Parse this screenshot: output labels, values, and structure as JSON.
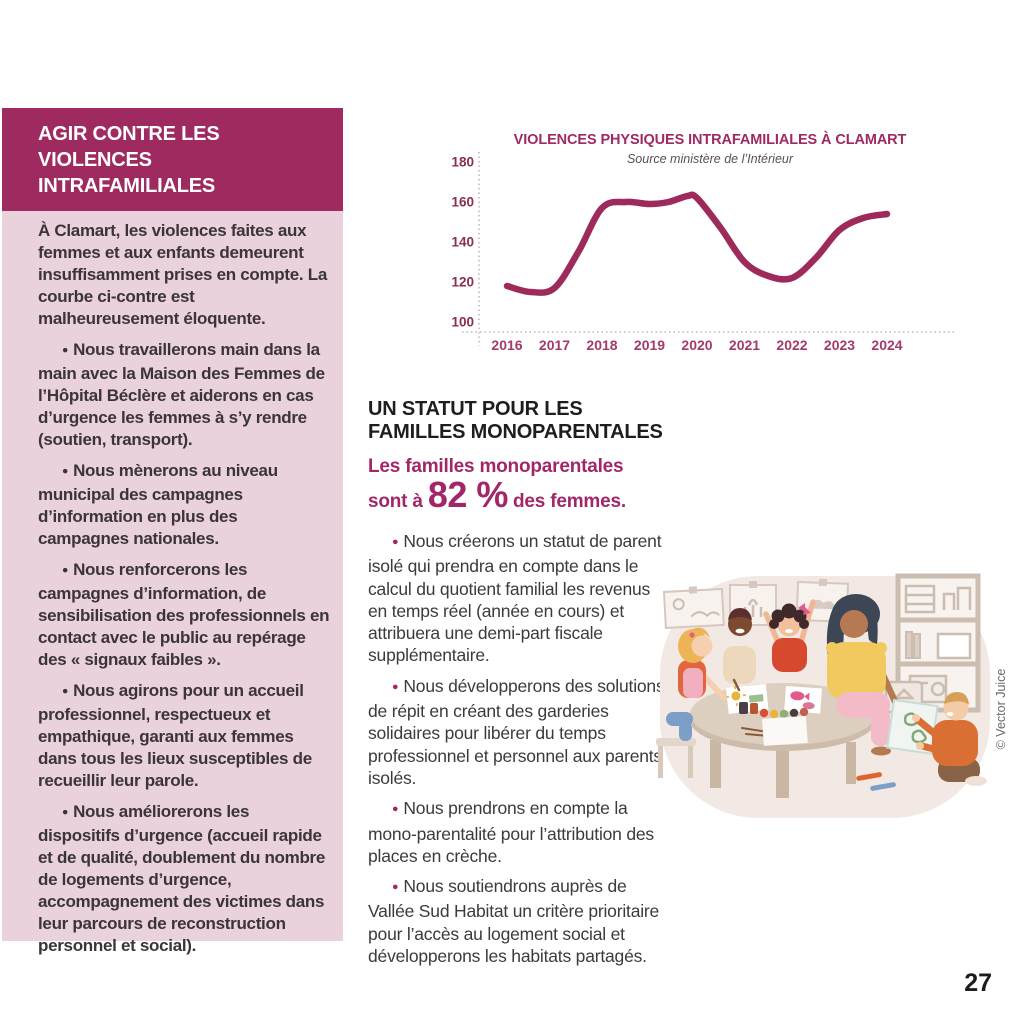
{
  "page": {
    "number": "27"
  },
  "colors": {
    "accent_magenta": "#9e2a60",
    "sidebar_pink": "#e9d2dc",
    "curve_magenta": "#9e2a5c",
    "text_dark": "#3b3439"
  },
  "sidebar": {
    "title_line1": "AGIR CONTRE LES VIOLENCES",
    "title_line2": "INTRAFAMILIALES",
    "intro": "À Clamart, les violences faites aux femmes et aux enfants demeurent insuffisamment prises en compte. La courbe ci-contre est malheureusement éloquente.",
    "bullets": [
      "Nous travaillerons main dans la main avec la Maison des Femmes de l’Hôpital Béclère et aiderons en cas d’urgence les femmes à s’y rendre (soutien, transport).",
      "Nous mènerons au niveau municipal des campagnes d’information en plus des campagnes nationales.",
      "Nous renforcerons les campagnes d’information, de sensibilisation des professionnels en contact avec le public au repérage des « signaux faibles ».",
      "Nous agirons pour un accueil professionnel, respectueux et empathique, garanti aux femmes dans tous les lieux susceptibles de recueillir leur parole.",
      "Nous améliorerons les dispositifs d’urgence (accueil rapide et de qualité, doublement du nombre de logements d’urgence, accompagnement des victimes dans leur parcours de reconstruction personnel et social)."
    ]
  },
  "chart_data": {
    "type": "line",
    "title": "VIOLENCES PHYSIQUES INTRAFAMILIALES À CLAMART",
    "subtitle": "Source ministère de l’Intérieur",
    "x": [
      2016,
      2016.5,
      2017,
      2017.5,
      2018,
      2018.5,
      2019,
      2019.4,
      2019.8,
      2020,
      2020.5,
      2021,
      2021.5,
      2022,
      2022.5,
      2023,
      2023.5,
      2024
    ],
    "y": [
      118,
      115,
      117,
      135,
      157,
      160,
      159,
      160,
      163,
      162,
      147,
      130,
      123,
      122,
      132,
      146,
      152,
      154
    ],
    "x_ticks": [
      "2016",
      "2017",
      "2018",
      "2019",
      "2020",
      "2021",
      "2022",
      "2023",
      "2024"
    ],
    "y_ticks": [
      100,
      120,
      140,
      160,
      180
    ],
    "ylim": [
      95,
      185
    ],
    "xlabel": "",
    "ylabel": "",
    "grid": false,
    "legend": null,
    "line_color": "#9e2a5c",
    "axis_style": "dotted"
  },
  "statut": {
    "heading_line1": "UN STATUT POUR LES",
    "heading_line2": "FAMILLES MONOPARENTALES",
    "stat_line1": "Les familles monoparentales",
    "stat_prefix": "sont à ",
    "stat_value": "82 %",
    "stat_suffix": " des femmes.",
    "bullets": [
      "Nous créerons un statut de parent isolé qui prendra en compte dans le calcul du quotient familial les revenus en temps réel (année en cours) et attribuera une demi-part fiscale supplémentaire.",
      "Nous développerons des solutions de répit en créant des garderies solidaires pour libérer du temps professionnel et personnel aux parents isolés.",
      "Nous prendrons en compte la mono-parentalité pour l’attribution des places en crèche.",
      "Nous soutiendrons auprès de Vallée Sud Habitat un critère prioritaire pour l’accès au logement social et développerons les habitats partagés."
    ]
  },
  "illustration": {
    "credit": "© Vector Juice"
  }
}
